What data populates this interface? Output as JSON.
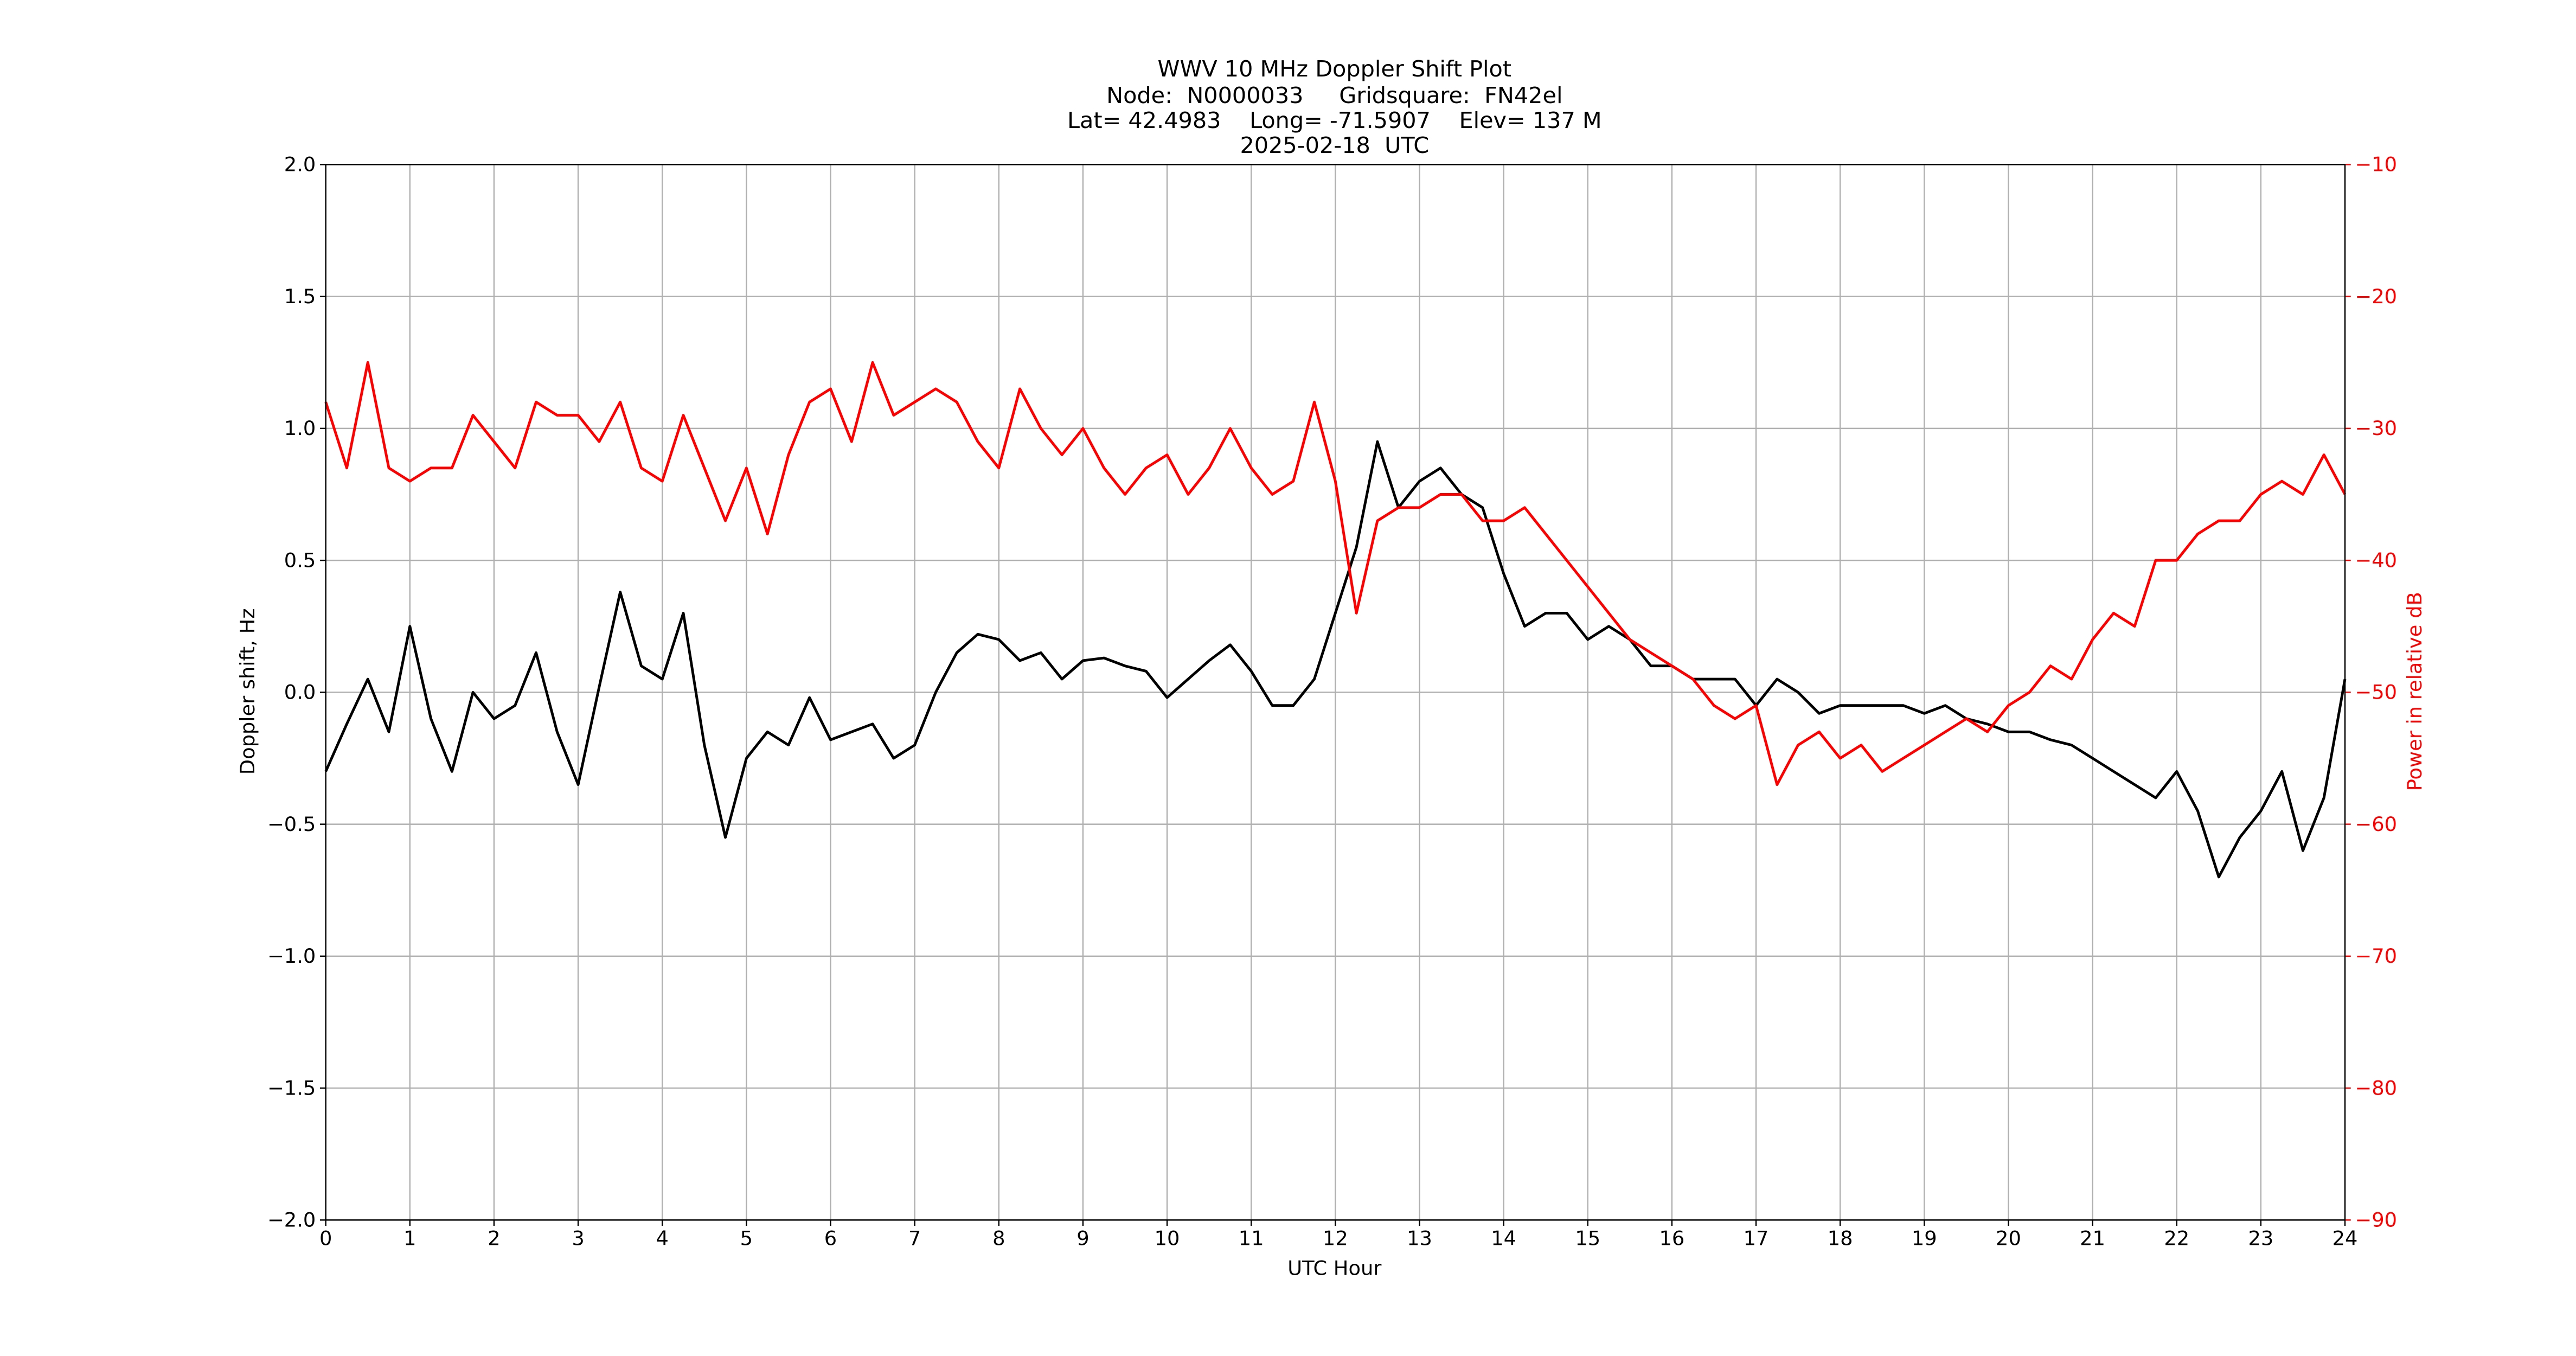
{
  "chart_data": {
    "type": "line",
    "title": [
      "WWV 10 MHz Doppler Shift Plot",
      "Node:  N0000033     Gridsquare:  FN42el",
      "Lat= 42.4983    Long= -71.5907    Elev= 137 M",
      "2025-02-18  UTC"
    ],
    "x_label": "UTC Hour",
    "y_label": "Doppler shift, Hz",
    "y2_label": "Power in relative dB",
    "x": [
      0,
      0.25,
      0.5,
      0.75,
      1,
      1.25,
      1.5,
      1.75,
      2,
      2.25,
      2.5,
      2.75,
      3,
      3.25,
      3.5,
      3.75,
      4,
      4.25,
      4.5,
      4.75,
      5,
      5.25,
      5.5,
      5.75,
      6,
      6.25,
      6.5,
      6.75,
      7,
      7.25,
      7.5,
      7.75,
      8,
      8.25,
      8.5,
      8.75,
      9,
      9.25,
      9.5,
      9.75,
      10,
      10.25,
      10.5,
      10.75,
      11,
      11.25,
      11.5,
      11.75,
      12,
      12.25,
      12.5,
      12.75,
      13,
      13.25,
      13.5,
      13.75,
      14,
      14.25,
      14.5,
      14.75,
      15,
      15.25,
      15.5,
      15.75,
      16,
      16.25,
      16.5,
      16.75,
      17,
      17.25,
      17.5,
      17.75,
      18,
      18.25,
      18.5,
      18.75,
      19,
      19.25,
      19.5,
      19.75,
      20,
      20.25,
      20.5,
      20.75,
      21,
      21.25,
      21.5,
      21.75,
      22,
      22.25,
      22.5,
      22.75,
      23,
      23.25,
      23.5,
      23.75,
      24
    ],
    "series": [
      {
        "name": "Doppler shift",
        "color": "#000000",
        "values": [
          -0.3,
          -0.12,
          0.05,
          -0.15,
          0.25,
          -0.1,
          -0.3,
          0.0,
          -0.1,
          -0.05,
          0.15,
          -0.15,
          -0.35,
          0.02,
          0.38,
          0.1,
          0.05,
          0.3,
          -0.2,
          -0.55,
          -0.25,
          -0.15,
          -0.2,
          -0.02,
          -0.18,
          -0.15,
          -0.12,
          -0.25,
          -0.2,
          0.0,
          0.15,
          0.22,
          0.2,
          0.12,
          0.15,
          0.05,
          0.12,
          0.13,
          0.1,
          0.08,
          -0.02,
          0.05,
          0.12,
          0.18,
          0.08,
          -0.05,
          -0.05,
          0.05,
          0.3,
          0.55,
          0.95,
          0.7,
          0.8,
          0.85,
          0.75,
          0.7,
          0.45,
          0.25,
          0.3,
          0.3,
          0.2,
          0.25,
          0.2,
          0.1,
          0.1,
          0.05,
          0.05,
          0.05,
          -0.05,
          0.05,
          0.0,
          -0.08,
          -0.05,
          -0.05,
          -0.05,
          -0.05,
          -0.08,
          -0.05,
          -0.1,
          -0.12,
          -0.15,
          -0.15,
          -0.18,
          -0.2,
          -0.25,
          -0.3,
          -0.35,
          -0.4,
          -0.3,
          -0.45,
          -0.7,
          -0.55,
          -0.45,
          -0.3,
          -0.6,
          -0.4,
          0.05
        ]
      },
      {
        "name": "Power",
        "color": "#ff0000",
        "axis": "y2",
        "values": [
          -28,
          -33,
          -25,
          -33,
          -34,
          -33,
          -33,
          -29,
          -31,
          -33,
          -28,
          -29,
          -29,
          -31,
          -28,
          -33,
          -34,
          -29,
          -33,
          -37,
          -33,
          -38,
          -32,
          -28,
          -27,
          -31,
          -25,
          -29,
          -28,
          -27,
          -28,
          -31,
          -33,
          -27,
          -30,
          -32,
          -30,
          -33,
          -35,
          -33,
          -32,
          -35,
          -33,
          -30,
          -33,
          -35,
          -34,
          -28,
          -34,
          -44,
          -37,
          -36,
          -36,
          -35,
          -35,
          -37,
          -37,
          -36,
          -38,
          -40,
          -42,
          -44,
          -46,
          -47,
          -48,
          -49,
          -51,
          -52,
          -51,
          -57,
          -54,
          -53,
          -55,
          -54,
          -56,
          -55,
          -54,
          -53,
          -52,
          -53,
          -51,
          -50,
          -48,
          -49,
          -46,
          -44,
          -45,
          -40,
          -40,
          -38,
          -37,
          -37,
          -35,
          -34,
          -35,
          -32,
          -35
        ]
      }
    ],
    "xlim": [
      0,
      24
    ],
    "xticks": [
      0,
      1,
      2,
      3,
      4,
      5,
      6,
      7,
      8,
      9,
      10,
      11,
      12,
      13,
      14,
      15,
      16,
      17,
      18,
      19,
      20,
      21,
      22,
      23,
      24
    ],
    "ylim": [
      -2,
      2
    ],
    "yticks": [
      {
        "value": -2,
        "label": "−2.0"
      },
      {
        "value": -1.5,
        "label": "−1.5"
      },
      {
        "value": -1,
        "label": "−1.0"
      },
      {
        "value": -0.5,
        "label": "−0.5"
      },
      {
        "value": 0,
        "label": "0.0"
      },
      {
        "value": 0.5,
        "label": "0.5"
      },
      {
        "value": 1,
        "label": "1.0"
      },
      {
        "value": 1.5,
        "label": "1.5"
      },
      {
        "value": 2,
        "label": "2.0"
      }
    ],
    "y2lim": [
      -90,
      -10
    ],
    "y2ticks": [
      {
        "value": -90,
        "label": "−90"
      },
      {
        "value": -80,
        "label": "−80"
      },
      {
        "value": -70,
        "label": "−70"
      },
      {
        "value": -60,
        "label": "−60"
      },
      {
        "value": -50,
        "label": "−50"
      },
      {
        "value": -40,
        "label": "−40"
      },
      {
        "value": -30,
        "label": "−30"
      },
      {
        "value": -20,
        "label": "−20"
      },
      {
        "value": -10,
        "label": "−10"
      }
    ],
    "y2_color": "#ff0000",
    "grid": true
  }
}
